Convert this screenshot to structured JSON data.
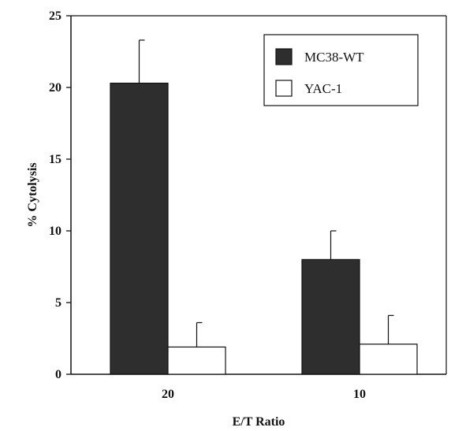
{
  "chart_data": {
    "type": "bar",
    "categories": [
      "20",
      "10"
    ],
    "series": [
      {
        "name": "MC38-WT",
        "values": [
          20.3,
          8.0
        ],
        "errors": [
          3.0,
          2.0
        ],
        "color": "#2e2e2e"
      },
      {
        "name": "YAC-1",
        "values": [
          1.9,
          2.1
        ],
        "errors": [
          1.7,
          2.0
        ],
        "color": "#ffffff"
      }
    ],
    "xlabel": "E/T Ratio",
    "ylabel": "% Cytolysis",
    "ylim": [
      0,
      25
    ],
    "yticks": [
      "0",
      "5",
      "10",
      "15",
      "20",
      "25"
    ],
    "grid": false,
    "legend_position": "top-right"
  }
}
